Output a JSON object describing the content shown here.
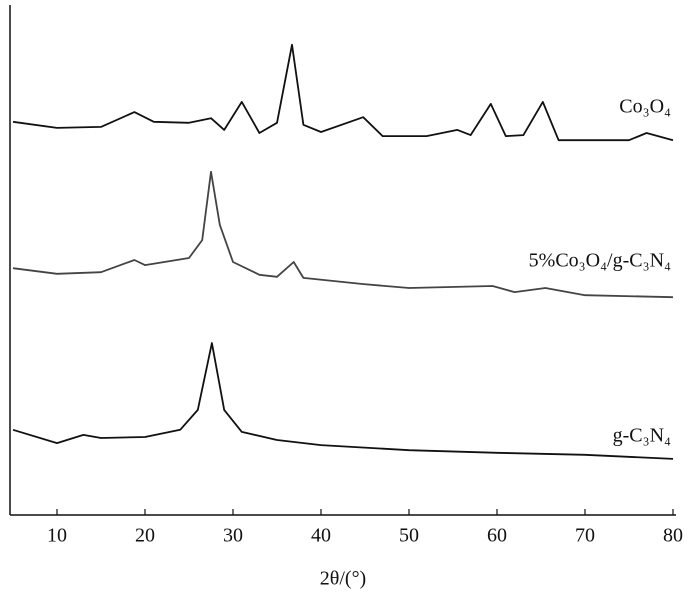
{
  "chart_data": {
    "type": "line",
    "x_label": "2θ/(°)",
    "xlim": [
      5,
      80
    ],
    "xticks": [
      10,
      20,
      30,
      40,
      50,
      60,
      70,
      80
    ],
    "ylim": [
      0,
      100
    ],
    "series": [
      {
        "name": "Co₃O₄",
        "color": "#111111",
        "x": [
          5,
          10,
          15,
          18.8,
          21,
          25,
          27.5,
          29,
          31,
          33,
          35,
          36.7,
          38,
          40,
          44.8,
          47,
          52,
          55.5,
          57,
          59.3,
          61,
          63,
          65.2,
          67,
          75,
          77,
          80
        ],
        "values": [
          77.1,
          75.9,
          76.1,
          79.0,
          77.1,
          76.9,
          77.8,
          75.5,
          81.0,
          74.9,
          76.9,
          92.2,
          76.5,
          75.1,
          78.0,
          74.3,
          74.3,
          75.5,
          74.5,
          80.6,
          74.3,
          74.5,
          81.0,
          73.5,
          73.5,
          74.9,
          73.5
        ]
      },
      {
        "name": "5%Co₃O₄/g-C₃N₄",
        "color": "#444444",
        "x": [
          5,
          10,
          15,
          18.8,
          20,
          25,
          26.5,
          27.5,
          28.5,
          30,
          33,
          35,
          36.9,
          38,
          44.7,
          50,
          59.5,
          62,
          65.5,
          70,
          80
        ],
        "values": [
          48.4,
          47.3,
          47.6,
          50.0,
          49.0,
          50.4,
          53.9,
          67.3,
          56.9,
          49.6,
          47.1,
          46.7,
          49.6,
          46.5,
          45.3,
          44.5,
          44.9,
          43.7,
          44.5,
          43.1,
          42.7
        ]
      },
      {
        "name": "g-C₃N₄",
        "color": "#111111",
        "x": [
          5,
          10,
          13,
          15,
          20,
          24,
          26,
          27.6,
          29,
          31,
          35,
          40,
          50,
          60,
          70,
          80
        ],
        "values": [
          16.7,
          14.1,
          15.7,
          15.1,
          15.3,
          16.7,
          20.6,
          33.7,
          20.6,
          16.3,
          14.7,
          13.7,
          12.7,
          12.2,
          11.8,
          11.0
        ]
      }
    ]
  }
}
